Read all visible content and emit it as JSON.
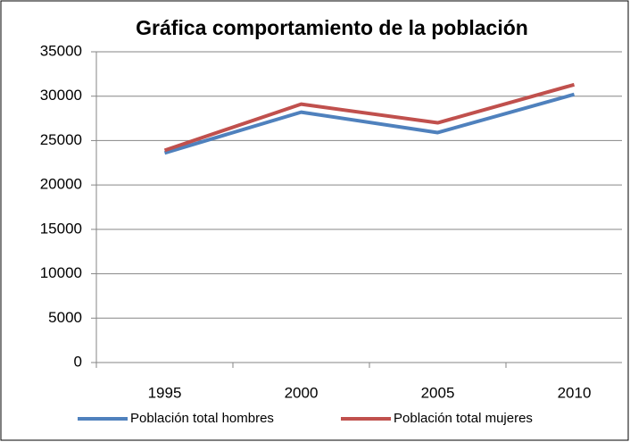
{
  "chart_data": {
    "type": "line",
    "title": "Gráfica comportamiento de la población",
    "categories": [
      "1995",
      "2000",
      "2005",
      "2010"
    ],
    "series": [
      {
        "name": "Población total hombres",
        "color": "#4f81bd",
        "values": [
          23600,
          28200,
          25900,
          30200
        ]
      },
      {
        "name": "Población total mujeres",
        "color": "#c0504d",
        "values": [
          23900,
          29100,
          27000,
          31300
        ]
      }
    ],
    "ylim": [
      0,
      35000
    ],
    "yticks": [
      0,
      5000,
      10000,
      15000,
      20000,
      25000,
      30000,
      35000
    ],
    "grid": true,
    "legend": "bottom"
  }
}
